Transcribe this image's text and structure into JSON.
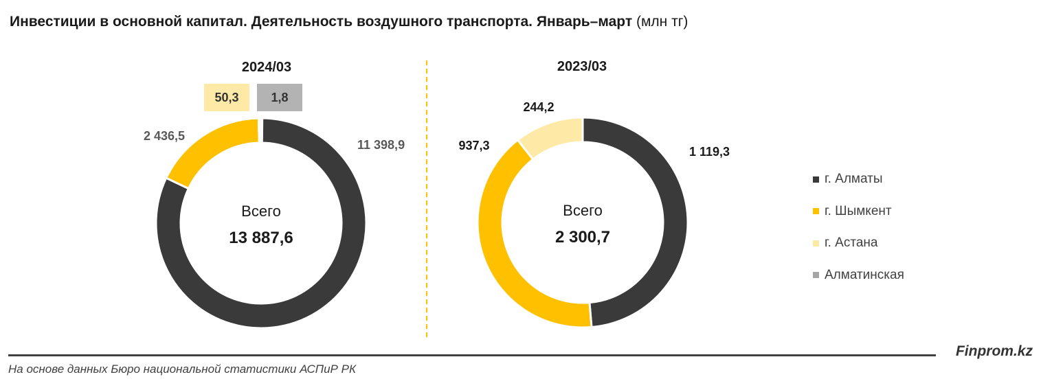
{
  "header": {
    "title_bold": "Инвестиции в основной капитал. Деятельность воздушного транспорта. Январь–март",
    "title_unit": "(млн тг)"
  },
  "chart_data": [
    {
      "type": "pie",
      "title": "2024/03",
      "center_label": "Всего",
      "total": "13 887,6",
      "slices": [
        {
          "name": "г. Алматы",
          "value": 11398.9,
          "label": "11 398,9",
          "color": "#3a3a3a"
        },
        {
          "name": "г. Шымкент",
          "value": 2436.5,
          "label": "2 436,5",
          "color": "#ffc000"
        },
        {
          "name": "г. Астана",
          "value": 50.3,
          "label": "50,3",
          "color": "#fee9a6"
        },
        {
          "name": "Алматинская",
          "value": 1.8,
          "label": "1,8",
          "color": "#a6a6a6"
        }
      ]
    },
    {
      "type": "pie",
      "title": "2023/03",
      "center_label": "Всего",
      "total": "2 300,7",
      "slices": [
        {
          "name": "г. Алматы",
          "value": 1119.3,
          "label": "1 119,3",
          "color": "#3a3a3a"
        },
        {
          "name": "г. Шымкент",
          "value": 937.3,
          "label": "937,3",
          "color": "#ffc000"
        },
        {
          "name": "г. Астана",
          "value": 244.2,
          "label": "244,2",
          "color": "#fee9a6"
        }
      ]
    }
  ],
  "legend": [
    {
      "label": "г. Алматы",
      "color": "#3a3a3a"
    },
    {
      "label": "г. Шымкент",
      "color": "#ffc000"
    },
    {
      "label": "г. Астана",
      "color": "#fee9a6"
    },
    {
      "label": "Алматинская",
      "color": "#a6a6a6"
    }
  ],
  "footer": {
    "brand": "Finprom.kz",
    "source": "На основе данных Бюро национальной статистики АСПиР РК"
  }
}
